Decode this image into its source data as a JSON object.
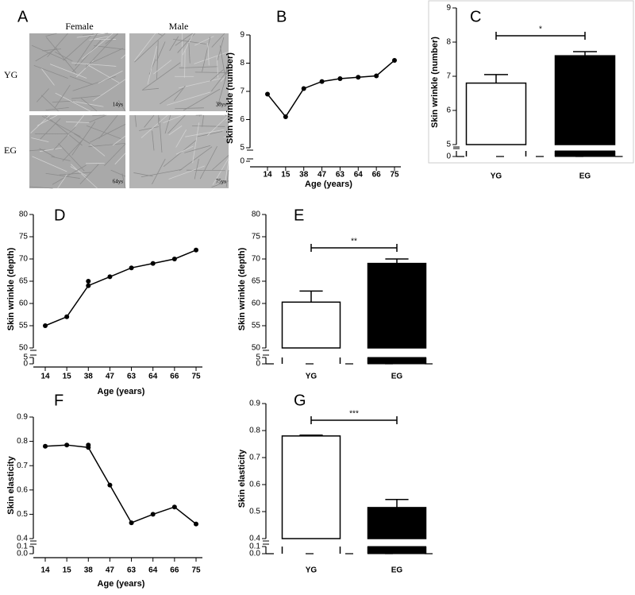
{
  "panel_a": {
    "label": "A",
    "columns": [
      "Female",
      "Male"
    ],
    "rows": [
      "YG",
      "EG"
    ],
    "ages": [
      "14ys",
      "38ys",
      "64ys",
      "75ys"
    ]
  },
  "chart_data": [
    {
      "type": "line",
      "panel_label": "B",
      "x_label": "Age (years)",
      "y_label": "Skin wrinkle (number)",
      "categories": [
        "14",
        "15",
        "38",
        "47",
        "63",
        "64",
        "66",
        "75"
      ],
      "series": [
        {
          "color": "#000000",
          "values": [
            6.9,
            6.1,
            7.1,
            7.35,
            7.45,
            7.5,
            7.55,
            8.1
          ]
        }
      ],
      "ylim": [
        0,
        9
      ],
      "y_break": [
        0,
        5
      ],
      "yticks": [
        0,
        5,
        6,
        7,
        8,
        9
      ]
    },
    {
      "type": "bar",
      "panel_label": "C",
      "y_label": "Skin wrinkle (number)",
      "categories": [
        "YG",
        "EG"
      ],
      "values": [
        6.8,
        7.6
      ],
      "errors": [
        0.25,
        0.12
      ],
      "colors": [
        "#ffffff",
        "#000000"
      ],
      "ylim": [
        0,
        9
      ],
      "y_break": [
        0,
        5
      ],
      "yticks": [
        0,
        5,
        6,
        7,
        8,
        9
      ],
      "significance": "*"
    },
    {
      "type": "line",
      "panel_label": "D",
      "x_label": "Age (years)",
      "y_label": "Skin wrinkle (depth)",
      "categories": [
        "14",
        "15",
        "38",
        "47",
        "63",
        "64",
        "66",
        "75"
      ],
      "series": [
        {
          "color": "#000000",
          "values": [
            55,
            57,
            64,
            66,
            68,
            69,
            70,
            72
          ]
        },
        {
          "color": "#000000",
          "line": false,
          "values": [
            null,
            null,
            65,
            null,
            null,
            null,
            null,
            null
          ]
        }
      ],
      "ylim": [
        0,
        80
      ],
      "y_break": [
        5,
        50
      ],
      "yticks": [
        0,
        5,
        50,
        55,
        60,
        65,
        70,
        75,
        80
      ]
    },
    {
      "type": "bar",
      "panel_label": "E",
      "y_label": "Skin wrinkle (depth)",
      "categories": [
        "YG",
        "EG"
      ],
      "values": [
        60.3,
        69
      ],
      "errors": [
        2.5,
        1.0
      ],
      "colors": [
        "#ffffff",
        "#000000"
      ],
      "ylim": [
        0,
        80
      ],
      "y_break": [
        5,
        50
      ],
      "yticks": [
        0,
        5,
        50,
        55,
        60,
        65,
        70,
        75,
        80
      ],
      "significance": "**"
    },
    {
      "type": "line",
      "panel_label": "F",
      "x_label": "Age (years)",
      "y_label": "Skin elasticity",
      "categories": [
        "14",
        "15",
        "38",
        "47",
        "63",
        "64",
        "66",
        "75"
      ],
      "series": [
        {
          "color": "#000000",
          "values": [
            0.78,
            0.785,
            0.775,
            0.62,
            0.465,
            0.5,
            0.53,
            0.46
          ]
        },
        {
          "color": "#000000",
          "line": false,
          "values": [
            null,
            null,
            0.785,
            null,
            null,
            null,
            null,
            null
          ]
        }
      ],
      "ylim": [
        0,
        0.9
      ],
      "y_break": [
        0.1,
        0.4
      ],
      "yticks": [
        {
          "value": 0,
          "label": "0.0"
        },
        0.1,
        0.4,
        0.5,
        0.6,
        0.7,
        0.8,
        0.9
      ]
    },
    {
      "type": "bar",
      "panel_label": "G",
      "y_label": "Skin elasticity",
      "categories": [
        "YG",
        "EG"
      ],
      "values": [
        0.78,
        0.515
      ],
      "errors": [
        0.003,
        0.03
      ],
      "colors": [
        "#ffffff",
        "#000000"
      ],
      "ylim": [
        0,
        0.9
      ],
      "y_break": [
        0.1,
        0.4
      ],
      "yticks": [
        {
          "value": 0,
          "label": "0.0"
        },
        0.1,
        0.4,
        0.5,
        0.6,
        0.7,
        0.8,
        0.9
      ],
      "significance": "***"
    }
  ]
}
